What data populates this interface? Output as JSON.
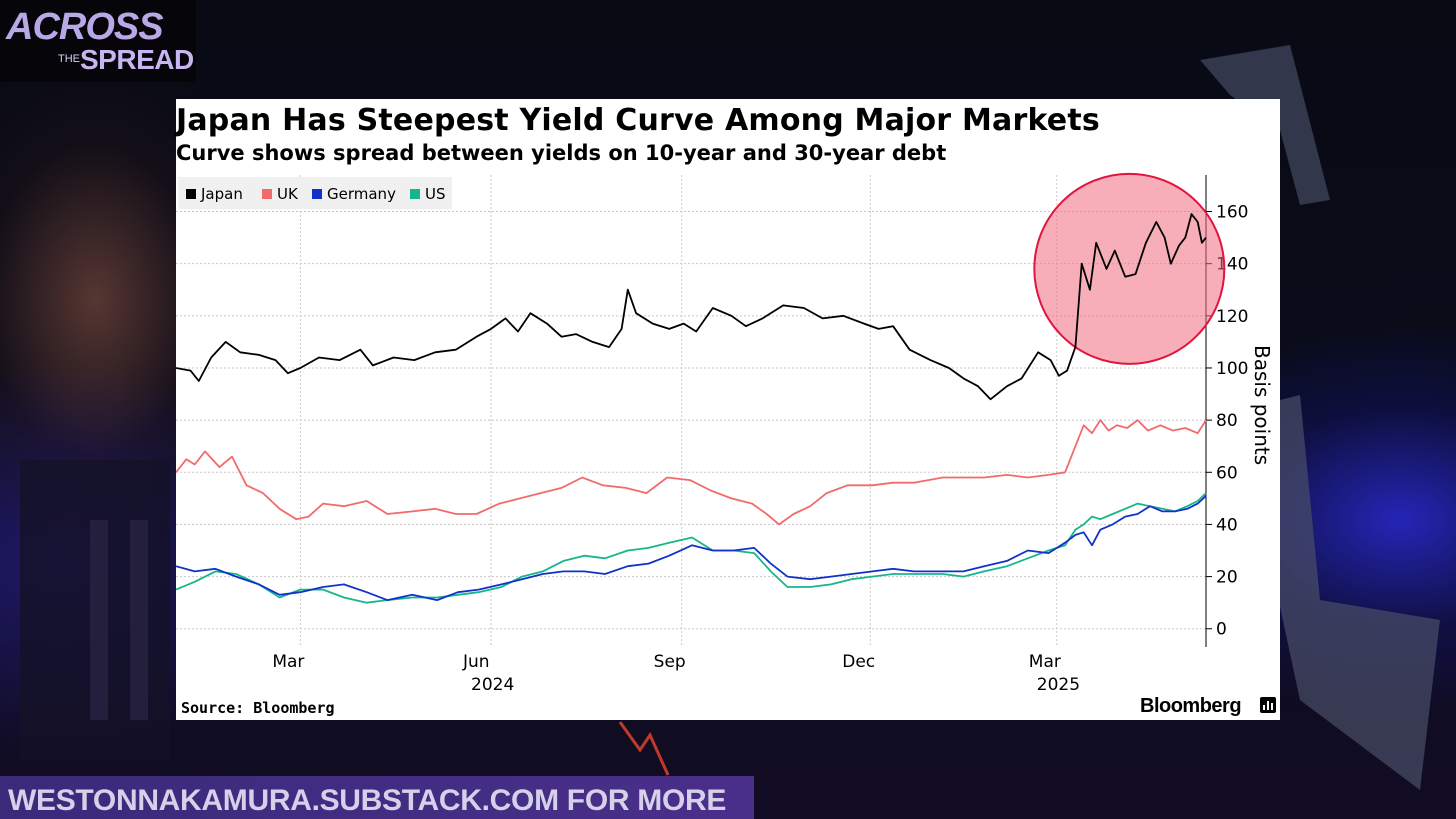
{
  "branding": {
    "logo_line1": "ACROSS",
    "logo_line2": "THE",
    "logo_line3": "SPREAD",
    "footer_text": "WESTONNAKAMURA.SUBSTACK.COM FOR MORE"
  },
  "chart_data": {
    "type": "line",
    "title": "Japan Has Steepest Yield Curve Among Major Markets",
    "subtitle": "Curve shows spread between yields on 10-year and 30-year debt",
    "ylabel": "Basis points",
    "xlabel": "",
    "ylim": [
      -7,
      174
    ],
    "yticks": [
      0,
      20,
      40,
      60,
      80,
      100,
      120,
      140,
      160
    ],
    "xlim": [
      "2024-01-01",
      "2025-05-12"
    ],
    "xticks": [
      {
        "date": "2024-03-01",
        "label": "Mar",
        "year": ""
      },
      {
        "date": "2024-06-01",
        "label": "Jun",
        "year": "2024"
      },
      {
        "date": "2024-09-01",
        "label": "Sep",
        "year": ""
      },
      {
        "date": "2024-12-01",
        "label": "Dec",
        "year": ""
      },
      {
        "date": "2025-03-01",
        "label": "Mar",
        "year": "2025"
      }
    ],
    "grid": true,
    "legend_position": "top-left",
    "source": "Source: Bloomberg",
    "publisher": "Bloomberg",
    "highlight_circle_color": "#f26c7f",
    "series": [
      {
        "name": "Japan",
        "color": "#000000",
        "points": [
          [
            "2024-01-01",
            100
          ],
          [
            "2024-01-08",
            99
          ],
          [
            "2024-01-12",
            95
          ],
          [
            "2024-01-18",
            104
          ],
          [
            "2024-01-25",
            110
          ],
          [
            "2024-02-01",
            106
          ],
          [
            "2024-02-10",
            105
          ],
          [
            "2024-02-18",
            103
          ],
          [
            "2024-02-24",
            98
          ],
          [
            "2024-03-01",
            100
          ],
          [
            "2024-03-10",
            104
          ],
          [
            "2024-03-20",
            103
          ],
          [
            "2024-03-30",
            107
          ],
          [
            "2024-04-05",
            101
          ],
          [
            "2024-04-15",
            104
          ],
          [
            "2024-04-25",
            103
          ],
          [
            "2024-05-05",
            106
          ],
          [
            "2024-05-15",
            107
          ],
          [
            "2024-05-25",
            112
          ],
          [
            "2024-06-01",
            115
          ],
          [
            "2024-06-08",
            119
          ],
          [
            "2024-06-14",
            114
          ],
          [
            "2024-06-20",
            121
          ],
          [
            "2024-06-28",
            117
          ],
          [
            "2024-07-05",
            112
          ],
          [
            "2024-07-12",
            113
          ],
          [
            "2024-07-20",
            110
          ],
          [
            "2024-07-28",
            108
          ],
          [
            "2024-08-03",
            115
          ],
          [
            "2024-08-06",
            130
          ],
          [
            "2024-08-10",
            121
          ],
          [
            "2024-08-18",
            117
          ],
          [
            "2024-08-26",
            115
          ],
          [
            "2024-09-02",
            117
          ],
          [
            "2024-09-08",
            114
          ],
          [
            "2024-09-16",
            123
          ],
          [
            "2024-09-25",
            120
          ],
          [
            "2024-10-02",
            116
          ],
          [
            "2024-10-10",
            119
          ],
          [
            "2024-10-20",
            124
          ],
          [
            "2024-10-30",
            123
          ],
          [
            "2024-11-08",
            119
          ],
          [
            "2024-11-18",
            120
          ],
          [
            "2024-11-28",
            117
          ],
          [
            "2024-12-05",
            115
          ],
          [
            "2024-12-12",
            116
          ],
          [
            "2024-12-20",
            107
          ],
          [
            "2024-12-30",
            103
          ],
          [
            "2025-01-08",
            100
          ],
          [
            "2025-01-15",
            96
          ],
          [
            "2025-01-22",
            93
          ],
          [
            "2025-01-28",
            88
          ],
          [
            "2025-02-05",
            93
          ],
          [
            "2025-02-12",
            96
          ],
          [
            "2025-02-20",
            106
          ],
          [
            "2025-02-26",
            103
          ],
          [
            "2025-03-02",
            97
          ],
          [
            "2025-03-06",
            99
          ],
          [
            "2025-03-10",
            108
          ],
          [
            "2025-03-13",
            140
          ],
          [
            "2025-03-17",
            130
          ],
          [
            "2025-03-20",
            148
          ],
          [
            "2025-03-25",
            138
          ],
          [
            "2025-03-29",
            145
          ],
          [
            "2025-04-03",
            135
          ],
          [
            "2025-04-08",
            136
          ],
          [
            "2025-04-13",
            148
          ],
          [
            "2025-04-18",
            156
          ],
          [
            "2025-04-22",
            150
          ],
          [
            "2025-04-25",
            140
          ],
          [
            "2025-04-29",
            147
          ],
          [
            "2025-05-02",
            150
          ],
          [
            "2025-05-05",
            159
          ],
          [
            "2025-05-08",
            156
          ],
          [
            "2025-05-10",
            148
          ],
          [
            "2025-05-12",
            150
          ]
        ]
      },
      {
        "name": "UK",
        "color": "#f26b6b",
        "points": [
          [
            "2024-01-01",
            60
          ],
          [
            "2024-01-06",
            65
          ],
          [
            "2024-01-10",
            63
          ],
          [
            "2024-01-15",
            68
          ],
          [
            "2024-01-22",
            62
          ],
          [
            "2024-01-28",
            66
          ],
          [
            "2024-02-04",
            55
          ],
          [
            "2024-02-12",
            52
          ],
          [
            "2024-02-20",
            46
          ],
          [
            "2024-02-28",
            42
          ],
          [
            "2024-03-05",
            43
          ],
          [
            "2024-03-12",
            48
          ],
          [
            "2024-03-22",
            47
          ],
          [
            "2024-04-02",
            49
          ],
          [
            "2024-04-12",
            44
          ],
          [
            "2024-04-24",
            45
          ],
          [
            "2024-05-05",
            46
          ],
          [
            "2024-05-15",
            44
          ],
          [
            "2024-05-25",
            44
          ],
          [
            "2024-06-05",
            48
          ],
          [
            "2024-06-15",
            50
          ],
          [
            "2024-06-25",
            52
          ],
          [
            "2024-07-05",
            54
          ],
          [
            "2024-07-15",
            58
          ],
          [
            "2024-07-25",
            55
          ],
          [
            "2024-08-05",
            54
          ],
          [
            "2024-08-15",
            52
          ],
          [
            "2024-08-25",
            58
          ],
          [
            "2024-09-05",
            57
          ],
          [
            "2024-09-15",
            53
          ],
          [
            "2024-09-25",
            50
          ],
          [
            "2024-10-05",
            48
          ],
          [
            "2024-10-12",
            44
          ],
          [
            "2024-10-18",
            40
          ],
          [
            "2024-10-25",
            44
          ],
          [
            "2024-11-02",
            47
          ],
          [
            "2024-11-10",
            52
          ],
          [
            "2024-11-20",
            55
          ],
          [
            "2024-12-02",
            55
          ],
          [
            "2024-12-12",
            56
          ],
          [
            "2024-12-22",
            56
          ],
          [
            "2025-01-05",
            58
          ],
          [
            "2025-01-15",
            58
          ],
          [
            "2025-01-25",
            58
          ],
          [
            "2025-02-05",
            59
          ],
          [
            "2025-02-15",
            58
          ],
          [
            "2025-02-25",
            59
          ],
          [
            "2025-03-05",
            60
          ],
          [
            "2025-03-10",
            70
          ],
          [
            "2025-03-14",
            78
          ],
          [
            "2025-03-18",
            75
          ],
          [
            "2025-03-22",
            80
          ],
          [
            "2025-03-26",
            76
          ],
          [
            "2025-03-30",
            78
          ],
          [
            "2025-04-04",
            77
          ],
          [
            "2025-04-09",
            80
          ],
          [
            "2025-04-14",
            76
          ],
          [
            "2025-04-20",
            78
          ],
          [
            "2025-04-26",
            76
          ],
          [
            "2025-05-02",
            77
          ],
          [
            "2025-05-08",
            75
          ],
          [
            "2025-05-12",
            80
          ]
        ]
      },
      {
        "name": "Germany",
        "color": "#1132c9",
        "points": [
          [
            "2024-01-01",
            24
          ],
          [
            "2024-01-10",
            22
          ],
          [
            "2024-01-20",
            23
          ],
          [
            "2024-01-30",
            20
          ],
          [
            "2024-02-10",
            17
          ],
          [
            "2024-02-20",
            13
          ],
          [
            "2024-03-01",
            14
          ],
          [
            "2024-03-12",
            16
          ],
          [
            "2024-03-22",
            17
          ],
          [
            "2024-04-02",
            14
          ],
          [
            "2024-04-12",
            11
          ],
          [
            "2024-04-24",
            13
          ],
          [
            "2024-05-06",
            11
          ],
          [
            "2024-05-16",
            14
          ],
          [
            "2024-05-26",
            15
          ],
          [
            "2024-06-06",
            17
          ],
          [
            "2024-06-16",
            19
          ],
          [
            "2024-06-26",
            21
          ],
          [
            "2024-07-06",
            22
          ],
          [
            "2024-07-16",
            22
          ],
          [
            "2024-07-26",
            21
          ],
          [
            "2024-08-06",
            24
          ],
          [
            "2024-08-16",
            25
          ],
          [
            "2024-08-26",
            28
          ],
          [
            "2024-09-06",
            32
          ],
          [
            "2024-09-16",
            30
          ],
          [
            "2024-09-26",
            30
          ],
          [
            "2024-10-06",
            31
          ],
          [
            "2024-10-14",
            25
          ],
          [
            "2024-10-22",
            20
          ],
          [
            "2024-11-02",
            19
          ],
          [
            "2024-11-12",
            20
          ],
          [
            "2024-11-22",
            21
          ],
          [
            "2024-12-02",
            22
          ],
          [
            "2024-12-12",
            23
          ],
          [
            "2024-12-22",
            22
          ],
          [
            "2025-01-05",
            22
          ],
          [
            "2025-01-15",
            22
          ],
          [
            "2025-01-25",
            24
          ],
          [
            "2025-02-05",
            26
          ],
          [
            "2025-02-15",
            30
          ],
          [
            "2025-02-25",
            29
          ],
          [
            "2025-03-05",
            33
          ],
          [
            "2025-03-10",
            36
          ],
          [
            "2025-03-14",
            37
          ],
          [
            "2025-03-18",
            32
          ],
          [
            "2025-03-22",
            38
          ],
          [
            "2025-03-28",
            40
          ],
          [
            "2025-04-03",
            43
          ],
          [
            "2025-04-09",
            44
          ],
          [
            "2025-04-15",
            47
          ],
          [
            "2025-04-21",
            45
          ],
          [
            "2025-04-27",
            45
          ],
          [
            "2025-05-03",
            46
          ],
          [
            "2025-05-08",
            48
          ],
          [
            "2025-05-12",
            51
          ]
        ]
      },
      {
        "name": "US",
        "color": "#17b58b",
        "points": [
          [
            "2024-01-01",
            15
          ],
          [
            "2024-01-10",
            18
          ],
          [
            "2024-01-20",
            22
          ],
          [
            "2024-01-30",
            21
          ],
          [
            "2024-02-10",
            17
          ],
          [
            "2024-02-20",
            12
          ],
          [
            "2024-03-01",
            15
          ],
          [
            "2024-03-12",
            15
          ],
          [
            "2024-03-22",
            12
          ],
          [
            "2024-04-02",
            10
          ],
          [
            "2024-04-12",
            11
          ],
          [
            "2024-04-24",
            12
          ],
          [
            "2024-05-06",
            12
          ],
          [
            "2024-05-16",
            13
          ],
          [
            "2024-05-26",
            14
          ],
          [
            "2024-06-06",
            16
          ],
          [
            "2024-06-16",
            20
          ],
          [
            "2024-06-26",
            22
          ],
          [
            "2024-07-06",
            26
          ],
          [
            "2024-07-16",
            28
          ],
          [
            "2024-07-26",
            27
          ],
          [
            "2024-08-06",
            30
          ],
          [
            "2024-08-16",
            31
          ],
          [
            "2024-08-26",
            33
          ],
          [
            "2024-09-06",
            35
          ],
          [
            "2024-09-16",
            30
          ],
          [
            "2024-09-26",
            30
          ],
          [
            "2024-10-06",
            29
          ],
          [
            "2024-10-14",
            22
          ],
          [
            "2024-10-22",
            16
          ],
          [
            "2024-11-02",
            16
          ],
          [
            "2024-11-12",
            17
          ],
          [
            "2024-11-22",
            19
          ],
          [
            "2024-12-02",
            20
          ],
          [
            "2024-12-12",
            21
          ],
          [
            "2024-12-22",
            21
          ],
          [
            "2025-01-05",
            21
          ],
          [
            "2025-01-15",
            20
          ],
          [
            "2025-01-25",
            22
          ],
          [
            "2025-02-05",
            24
          ],
          [
            "2025-02-15",
            27
          ],
          [
            "2025-02-25",
            30
          ],
          [
            "2025-03-05",
            32
          ],
          [
            "2025-03-10",
            38
          ],
          [
            "2025-03-14",
            40
          ],
          [
            "2025-03-18",
            43
          ],
          [
            "2025-03-22",
            42
          ],
          [
            "2025-03-28",
            44
          ],
          [
            "2025-04-03",
            46
          ],
          [
            "2025-04-09",
            48
          ],
          [
            "2025-04-15",
            47
          ],
          [
            "2025-04-21",
            46
          ],
          [
            "2025-04-27",
            45
          ],
          [
            "2025-05-03",
            47
          ],
          [
            "2025-05-08",
            49
          ],
          [
            "2025-05-12",
            52
          ]
        ]
      }
    ]
  }
}
